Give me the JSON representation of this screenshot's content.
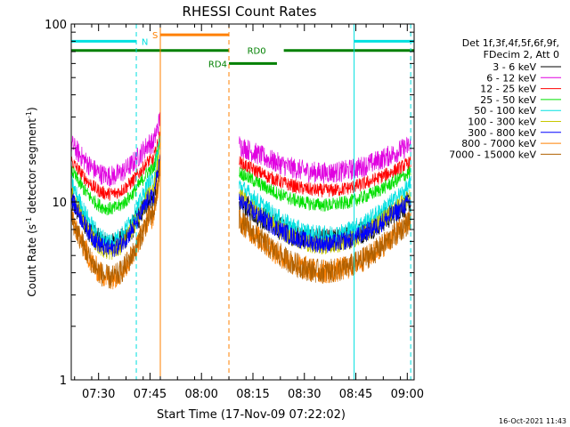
{
  "chart_data": {
    "type": "line",
    "title": "RHESSI Count Rates",
    "xlabel": "Start Time (17-Nov-09 07:22:02)",
    "ylabel": "Count Rate (s",
    "ylabel_exp1": "-1",
    "ylabel_mid": " detector segment",
    "ylabel_exp2": "-1",
    "ylabel_end": ")",
    "y_scale": "log",
    "ylim": [
      1,
      100
    ],
    "y_ticks": [
      "1",
      "10",
      "100"
    ],
    "x_range": [
      "07:22:02",
      "09:02:00"
    ],
    "x_ticks": [
      "07:30",
      "07:45",
      "08:00",
      "08:15",
      "08:30",
      "08:45",
      "09:00"
    ],
    "grid": false,
    "legend_position": "right",
    "legend_header": [
      "Det 1f,3f,4f,5f,6f,9f,",
      "FDecim 2, Att 0"
    ],
    "footer": "16-Oct-2021 11:43",
    "series": [
      {
        "name": "3 - 6 keV",
        "color": "#000000",
        "base": 9.5,
        "amp": 0.6,
        "noise": 0.16
      },
      {
        "name": "6 - 12 keV",
        "color": "#e000e0",
        "base": 20.0,
        "amp": 0.42,
        "noise": 0.14
      },
      {
        "name": "12 - 25 keV",
        "color": "#ff0000",
        "base": 16.0,
        "amp": 0.43,
        "noise": 0.09
      },
      {
        "name": "25 - 50 keV",
        "color": "#00e000",
        "base": 14.0,
        "amp": 0.5,
        "noise": 0.09
      },
      {
        "name": "50 - 100 keV",
        "color": "#00e0e0",
        "base": 11.5,
        "amp": 0.75,
        "noise": 0.12
      },
      {
        "name": "100 - 300 keV",
        "color": "#c8c800",
        "base": 10.0,
        "amp": 0.75,
        "noise": 0.12
      },
      {
        "name": "300 - 800 keV",
        "color": "#0000ff",
        "base": 9.5,
        "amp": 0.65,
        "noise": 0.12
      },
      {
        "name": "800 - 7000 keV",
        "color": "#ff8000",
        "base": 7.3,
        "amp": 0.78,
        "noise": 0.16
      },
      {
        "name": "7000 - 15000 keV",
        "color": "#b06000",
        "base": 7.3,
        "amp": 0.78,
        "noise": 0.16
      }
    ],
    "data_segments": [
      {
        "start": "07:22:02",
        "end": "07:48:00"
      },
      {
        "start": "08:11:00",
        "end": "09:01:00"
      }
    ],
    "flags": [
      {
        "label": "N",
        "color": "#00e0e0",
        "level": 80,
        "spans": [
          [
            "07:22:02",
            "07:41:00"
          ],
          [
            "08:44:30",
            "09:02:00"
          ]
        ],
        "label_at": "07:42:30"
      },
      {
        "label": "S",
        "color": "#ff8000",
        "level": 87,
        "spans": [
          [
            "07:48:00",
            "08:08:00"
          ]
        ],
        "label_at": "07:45:40"
      },
      {
        "label": "RD0",
        "color": "#008000",
        "level": 71,
        "spans": [
          [
            "07:22:02",
            "08:08:00"
          ],
          [
            "08:24:00",
            "09:02:00"
          ]
        ],
        "label_at": "08:13:20"
      },
      {
        "label": "RD4",
        "color": "#008000",
        "level": 60,
        "spans": [
          [
            "08:08:00",
            "08:22:00"
          ]
        ],
        "label_at": "08:02:00"
      }
    ],
    "vlines": [
      {
        "time": "07:41:00",
        "color": "#00e0e0",
        "style": "dashed"
      },
      {
        "time": "07:48:00",
        "color": "#ff8000",
        "style": "solid"
      },
      {
        "time": "08:08:00",
        "color": "#ff8000",
        "style": "dashed"
      },
      {
        "time": "08:44:30",
        "color": "#00e0e0",
        "style": "solid"
      },
      {
        "time": "09:01:00",
        "color": "#00e0e0",
        "style": "dashed"
      }
    ]
  }
}
